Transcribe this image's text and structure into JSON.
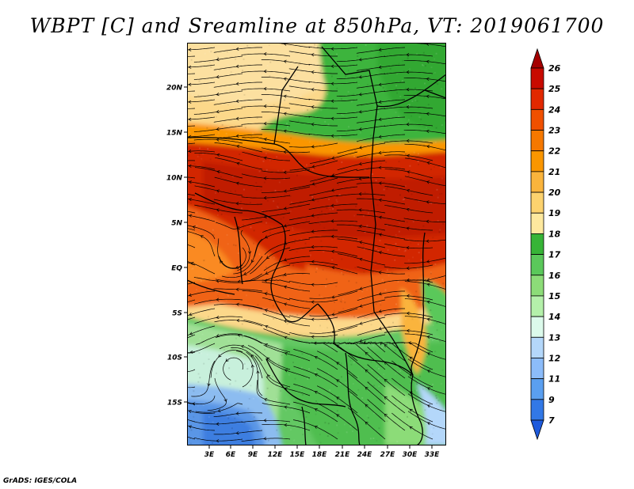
{
  "title": "WBPT [C] and Sreamline at 850hPa, VT: 2019061700",
  "footer": "GrADS: IGES/COLA",
  "latitude_labels": [
    "20N",
    "15N",
    "10N",
    "5N",
    "EQ",
    "5S",
    "10S",
    "15S"
  ],
  "longitude_labels": [
    "3E",
    "6E",
    "9E",
    "12E",
    "15E",
    "18E",
    "21E",
    "24E",
    "27E",
    "30E",
    "33E"
  ],
  "colorbar": {
    "labels": [
      "26",
      "25",
      "24",
      "23",
      "22",
      "21",
      "20",
      "19",
      "18",
      "17",
      "16",
      "15",
      "14",
      "13",
      "12",
      "11",
      "9",
      "7"
    ],
    "colors": [
      "#a50000",
      "#c80a00",
      "#e12800",
      "#f05000",
      "#f57800",
      "#fa9600",
      "#fab43c",
      "#fcd26e",
      "#fde89e",
      "#37b437",
      "#5ac85a",
      "#8cdc78",
      "#b4f0aa",
      "#dcfaeb",
      "#b4d7fa",
      "#8cbcfa",
      "#5a9ff0",
      "#3278e6",
      "#1e5adc"
    ]
  },
  "palette": {
    "sahara_yellow": "#fcd88a",
    "sahel_green": "#3cb43c",
    "band_red": "#d22800",
    "band_orange": "#f06414",
    "south_green": "#64c864",
    "light_green": "#a0e096",
    "blue": "#5a96e6"
  }
}
